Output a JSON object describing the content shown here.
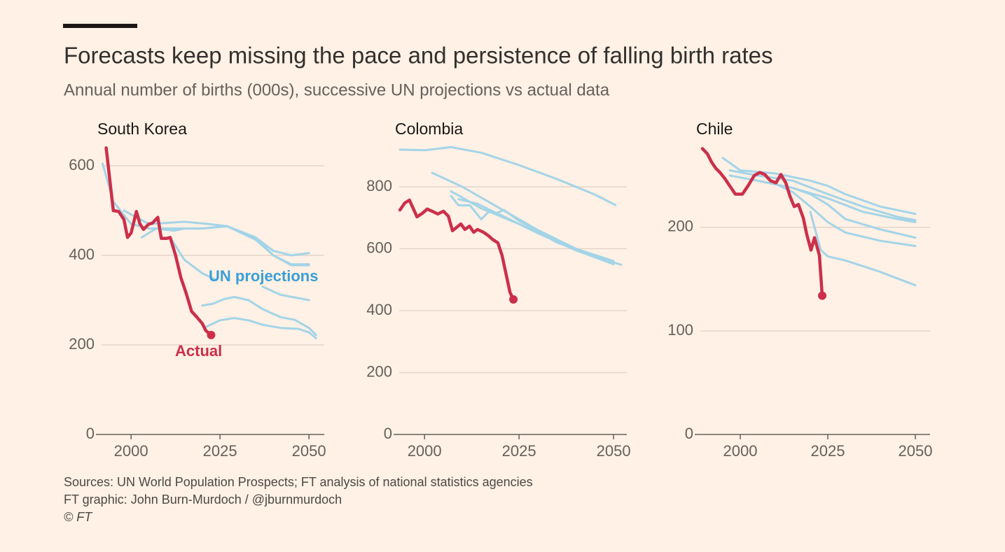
{
  "title": "Forecasts keep missing the pace and persistence of falling birth rates",
  "subtitle": "Annual number of births (000s), successive UN projections vs actual data",
  "footer": [
    "Sources: UN World Population Prospects; FT analysis of national statistics agencies",
    "FT graphic: John Burn-Murdoch / @jburnmurdoch",
    "© FT"
  ],
  "chart_data": [
    {
      "type": "line",
      "title": "South Korea",
      "xlim": [
        1991.7,
        2054.3
      ],
      "xticks": [
        2000,
        2025,
        2050
      ],
      "ylim": [
        0,
        650
      ],
      "yticks": [
        0,
        200,
        400,
        600
      ],
      "grid": true,
      "annotations": [
        {
          "text": "UN projections",
          "color": "#3a9fd5"
        },
        {
          "text": "Actual",
          "color": "#cc2f4a"
        }
      ],
      "series": [
        {
          "color": "#a3d4e8",
          "x": [
            1992,
            1995,
            2000,
            2005,
            2010,
            2020,
            2027,
            2035,
            2040,
            2045,
            2050
          ],
          "values": [
            605,
            520,
            470,
            460,
            460,
            460,
            465,
            440,
            410,
            400,
            405
          ]
        },
        {
          "color": "#a3d4e8",
          "x": [
            1998,
            2005,
            2015,
            2022,
            2027,
            2035,
            2040,
            2045,
            2050
          ],
          "values": [
            500,
            470,
            475,
            470,
            465,
            440,
            400,
            380,
            380
          ]
        },
        {
          "color": "#a3d4e8",
          "x": [
            2003,
            2007,
            2012,
            2015,
            2020,
            2027,
            2035,
            2040,
            2045,
            2050
          ],
          "values": [
            440,
            460,
            455,
            460,
            460,
            465,
            435,
            400,
            378,
            378
          ]
        },
        {
          "color": "#a3d4e8",
          "x": [
            2011,
            2015,
            2020,
            2024
          ],
          "values": [
            440,
            390,
            360,
            345
          ]
        },
        {
          "color": "#a3d4e8",
          "x": [
            2037,
            2042,
            2050
          ],
          "values": [
            330,
            312,
            300
          ]
        },
        {
          "color": "#a3d4e8",
          "x": [
            2020,
            2023,
            2026,
            2029,
            2033,
            2037,
            2042,
            2046,
            2050,
            2052
          ],
          "values": [
            288,
            292,
            302,
            307,
            300,
            280,
            262,
            256,
            238,
            222
          ]
        },
        {
          "color": "#a3d4e8",
          "x": [
            2021,
            2025,
            2029,
            2033,
            2037,
            2042,
            2047,
            2050,
            2052
          ],
          "values": [
            240,
            255,
            260,
            255,
            245,
            238,
            236,
            228,
            215
          ]
        },
        {
          "color": "#cc2f4a",
          "x": [
            1993,
            1995,
            1996.5,
            1998,
            1999,
            2000,
            2001.5,
            2002.5,
            2003.5,
            2005,
            2006,
            2007.5,
            2008.5,
            2010,
            2011,
            2012.5,
            2014,
            2015.5,
            2017,
            2018.5,
            2020,
            2021,
            2022.5
          ],
          "values": [
            640,
            500,
            498,
            480,
            440,
            450,
            498,
            470,
            458,
            470,
            472,
            485,
            438,
            438,
            440,
            400,
            350,
            315,
            275,
            262,
            248,
            232,
            222
          ]
        }
      ]
    },
    {
      "type": "line",
      "title": "Colombia",
      "xlim": [
        1993.3,
        2053.5
      ],
      "xticks": [
        2000,
        2025,
        2050
      ],
      "ylim": [
        0,
        940
      ],
      "yticks": [
        0,
        200,
        400,
        600,
        800
      ],
      "grid": true,
      "series": [
        {
          "color": "#a3d4e8",
          "x": [
            1993.5,
            2000,
            2007,
            2015,
            2025,
            2035,
            2045,
            2050.5
          ],
          "values": [
            920,
            918,
            928,
            910,
            870,
            825,
            775,
            741
          ]
        },
        {
          "color": "#a3d4e8",
          "x": [
            2002,
            2010,
            2020,
            2030,
            2040,
            2050
          ],
          "values": [
            845,
            800,
            730,
            660,
            600,
            555
          ]
        },
        {
          "color": "#a3d4e8",
          "x": [
            2007,
            2010,
            2015,
            2020,
            2025,
            2030,
            2040,
            2050
          ],
          "values": [
            785,
            765,
            730,
            705,
            680,
            650,
            595,
            550
          ]
        },
        {
          "color": "#a3d4e8",
          "x": [
            2007,
            2009,
            2012,
            2015,
            2017,
            2020,
            2030,
            2040,
            2050
          ],
          "values": [
            770,
            740,
            740,
            695,
            720,
            710,
            650,
            600,
            560
          ]
        },
        {
          "color": "#a3d4e8",
          "x": [
            2009,
            2014,
            2019,
            2021,
            2025,
            2035,
            2045,
            2052
          ],
          "values": [
            760,
            745,
            715,
            725,
            690,
            620,
            575,
            548
          ]
        },
        {
          "color": "#cc2f4a",
          "x": [
            1993.5,
            1994.8,
            1996,
            1997,
            1998,
            1999.4,
            2000.7,
            2002,
            2003.5,
            2005,
            2006.3,
            2007.4,
            2008.5,
            2009.6,
            2010.7,
            2011.9,
            2013,
            2014,
            2015.6,
            2016.9,
            2018,
            2019.4,
            2020.5,
            2021.5,
            2022.6,
            2023.5
          ],
          "values": [
            725,
            748,
            757,
            730,
            703,
            714,
            728,
            721,
            712,
            721,
            705,
            658,
            669,
            680,
            662,
            673,
            653,
            662,
            653,
            642,
            630,
            619,
            579,
            522,
            459,
            436
          ]
        }
      ]
    },
    {
      "type": "line",
      "title": "Chile",
      "xlim": [
        1988.6,
        2054.2
      ],
      "xticks": [
        2000,
        2025,
        2050
      ],
      "ylim": [
        0,
        281
      ],
      "yticks": [
        0,
        100,
        200
      ],
      "grid": true,
      "series": [
        {
          "color": "#a3d4e8",
          "x": [
            1995,
            2000,
            2010,
            2020,
            2025,
            2030,
            2040,
            2050
          ],
          "values": [
            267,
            255,
            252,
            245,
            240,
            232,
            220,
            213
          ]
        },
        {
          "color": "#a3d4e8",
          "x": [
            1997,
            2005,
            2015,
            2025,
            2035,
            2045,
            2050
          ],
          "values": [
            255,
            250,
            245,
            232,
            220,
            210,
            207
          ]
        },
        {
          "color": "#a3d4e8",
          "x": [
            1997,
            2005,
            2015,
            2025,
            2035,
            2045,
            2050
          ],
          "values": [
            250,
            245,
            238,
            228,
            215,
            208,
            205
          ]
        },
        {
          "color": "#a3d4e8",
          "x": [
            2005,
            2015,
            2020,
            2025,
            2030,
            2040,
            2050
          ],
          "values": [
            245,
            238,
            232,
            222,
            208,
            198,
            190
          ]
        },
        {
          "color": "#a3d4e8",
          "x": [
            2010,
            2015,
            2020,
            2025,
            2030,
            2040,
            2050
          ],
          "values": [
            242,
            234,
            220,
            205,
            195,
            187,
            182
          ]
        },
        {
          "color": "#a3d4e8",
          "x": [
            2020,
            2023,
            2025,
            2030,
            2040,
            2050
          ],
          "values": [
            215,
            178,
            172,
            168,
            157,
            144
          ]
        },
        {
          "color": "#cc2f4a",
          "x": [
            1989.2,
            1990.6,
            1991.8,
            1993,
            1994.2,
            1995.6,
            1997,
            1998.6,
            2000.6,
            2002.2,
            2004,
            2005.6,
            2007,
            2008.6,
            2010.2,
            2011.6,
            2013,
            2014.2,
            2015.4,
            2016.6,
            2018,
            2019,
            2020.2,
            2021.2,
            2022.6,
            2023.4
          ],
          "values": [
            276,
            271,
            263,
            257,
            253,
            247,
            240,
            232,
            232,
            240,
            250,
            253,
            251,
            245,
            243,
            251,
            243,
            230,
            220,
            222,
            209,
            193,
            178,
            190,
            173,
            134
          ]
        }
      ]
    }
  ]
}
